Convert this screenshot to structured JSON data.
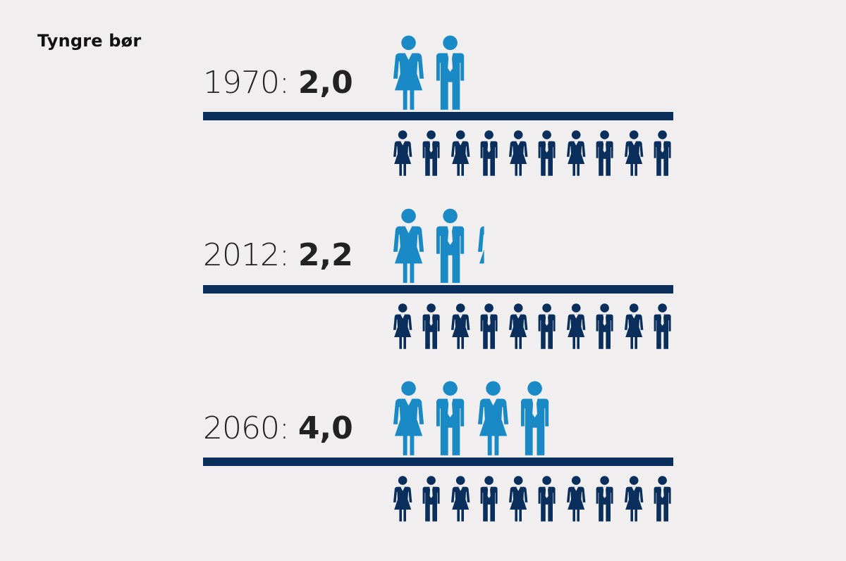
{
  "title": "Tyngre bør",
  "colors": {
    "background": "#f0eeee",
    "dependents": "#1a8ac6",
    "workers": "#0a2f5c",
    "divider": "#0a2f5c"
  },
  "icons": {
    "woman": "woman-icon",
    "man": "man-icon"
  },
  "chart_data": {
    "type": "pictogram",
    "title": "Tyngre bør",
    "unit_per_row": 10,
    "rows": [
      {
        "year": "1970",
        "sep": ":",
        "value_label": "2,0",
        "value": 2.0
      },
      {
        "year": "2012",
        "sep": ":",
        "value_label": "2,2",
        "value": 2.2
      },
      {
        "year": "2060",
        "sep": ":",
        "value_label": "4,0",
        "value": 4.0
      }
    ]
  }
}
